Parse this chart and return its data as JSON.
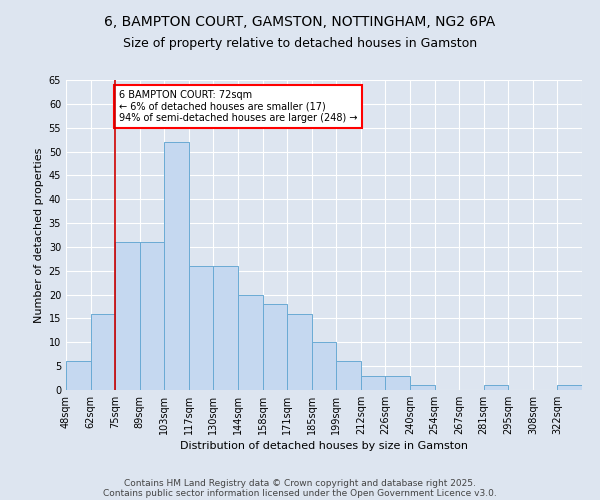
{
  "title1": "6, BAMPTON COURT, GAMSTON, NOTTINGHAM, NG2 6PA",
  "title2": "Size of property relative to detached houses in Gamston",
  "xlabel": "Distribution of detached houses by size in Gamston",
  "ylabel": "Number of detached properties",
  "bin_labels": [
    "48sqm",
    "62sqm",
    "75sqm",
    "89sqm",
    "103sqm",
    "117sqm",
    "130sqm",
    "144sqm",
    "158sqm",
    "171sqm",
    "185sqm",
    "199sqm",
    "212sqm",
    "226sqm",
    "240sqm",
    "254sqm",
    "267sqm",
    "281sqm",
    "295sqm",
    "308sqm",
    "322sqm"
  ],
  "bar_heights": [
    6,
    16,
    31,
    31,
    52,
    26,
    26,
    20,
    18,
    16,
    10,
    6,
    3,
    3,
    1,
    0,
    0,
    1,
    0,
    0,
    1
  ],
  "bar_color": "#c5d8f0",
  "bar_edge_color": "#6aaad4",
  "red_line_index": 2,
  "annotation_text": "6 BAMPTON COURT: 72sqm\n← 6% of detached houses are smaller (17)\n94% of semi-detached houses are larger (248) →",
  "annotation_box_color": "white",
  "annotation_box_edge_color": "red",
  "red_line_color": "#cc0000",
  "ylim": [
    0,
    65
  ],
  "yticks": [
    0,
    5,
    10,
    15,
    20,
    25,
    30,
    35,
    40,
    45,
    50,
    55,
    60,
    65
  ],
  "footer1": "Contains HM Land Registry data © Crown copyright and database right 2025.",
  "footer2": "Contains public sector information licensed under the Open Government Licence v3.0.",
  "background_color": "#dde5f0",
  "plot_bg_color": "#dde5f0",
  "title_fontsize": 10,
  "subtitle_fontsize": 9,
  "axis_label_fontsize": 8,
  "tick_fontsize": 7,
  "footer_fontsize": 6.5
}
